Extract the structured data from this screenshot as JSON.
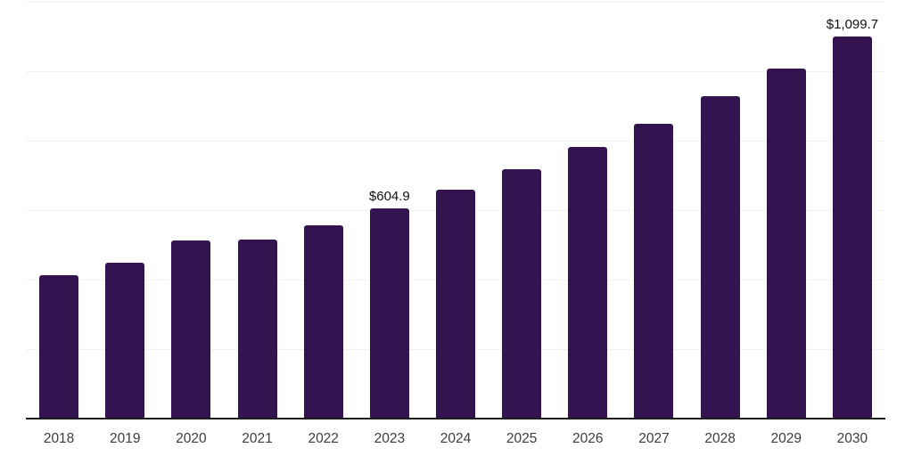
{
  "chart_data": {
    "type": "bar",
    "title": "",
    "xlabel": "",
    "ylabel": "",
    "categories": [
      "2018",
      "2019",
      "2020",
      "2021",
      "2022",
      "2023",
      "2024",
      "2025",
      "2026",
      "2027",
      "2028",
      "2029",
      "2030"
    ],
    "values": [
      412,
      448,
      512,
      515,
      556,
      604.9,
      658,
      717,
      781,
      848,
      927,
      1009,
      1099.7
    ],
    "bar_labels": [
      "",
      "",
      "",
      "",
      "",
      "$604.9",
      "",
      "",
      "",
      "",
      "",
      "",
      "$1,099.7"
    ],
    "ylim": [
      0,
      1200
    ],
    "gridline_step": 200,
    "grid": "horizontal-only",
    "legend": "none",
    "y_tick_labels_visible": false,
    "colors": {
      "bar": "#331450",
      "gridline": "#f2f2f2",
      "axis_line": "#1d1d1d",
      "tick_label": "#3c3c3c",
      "value_label": "#101010",
      "background": "#ffffff"
    }
  }
}
